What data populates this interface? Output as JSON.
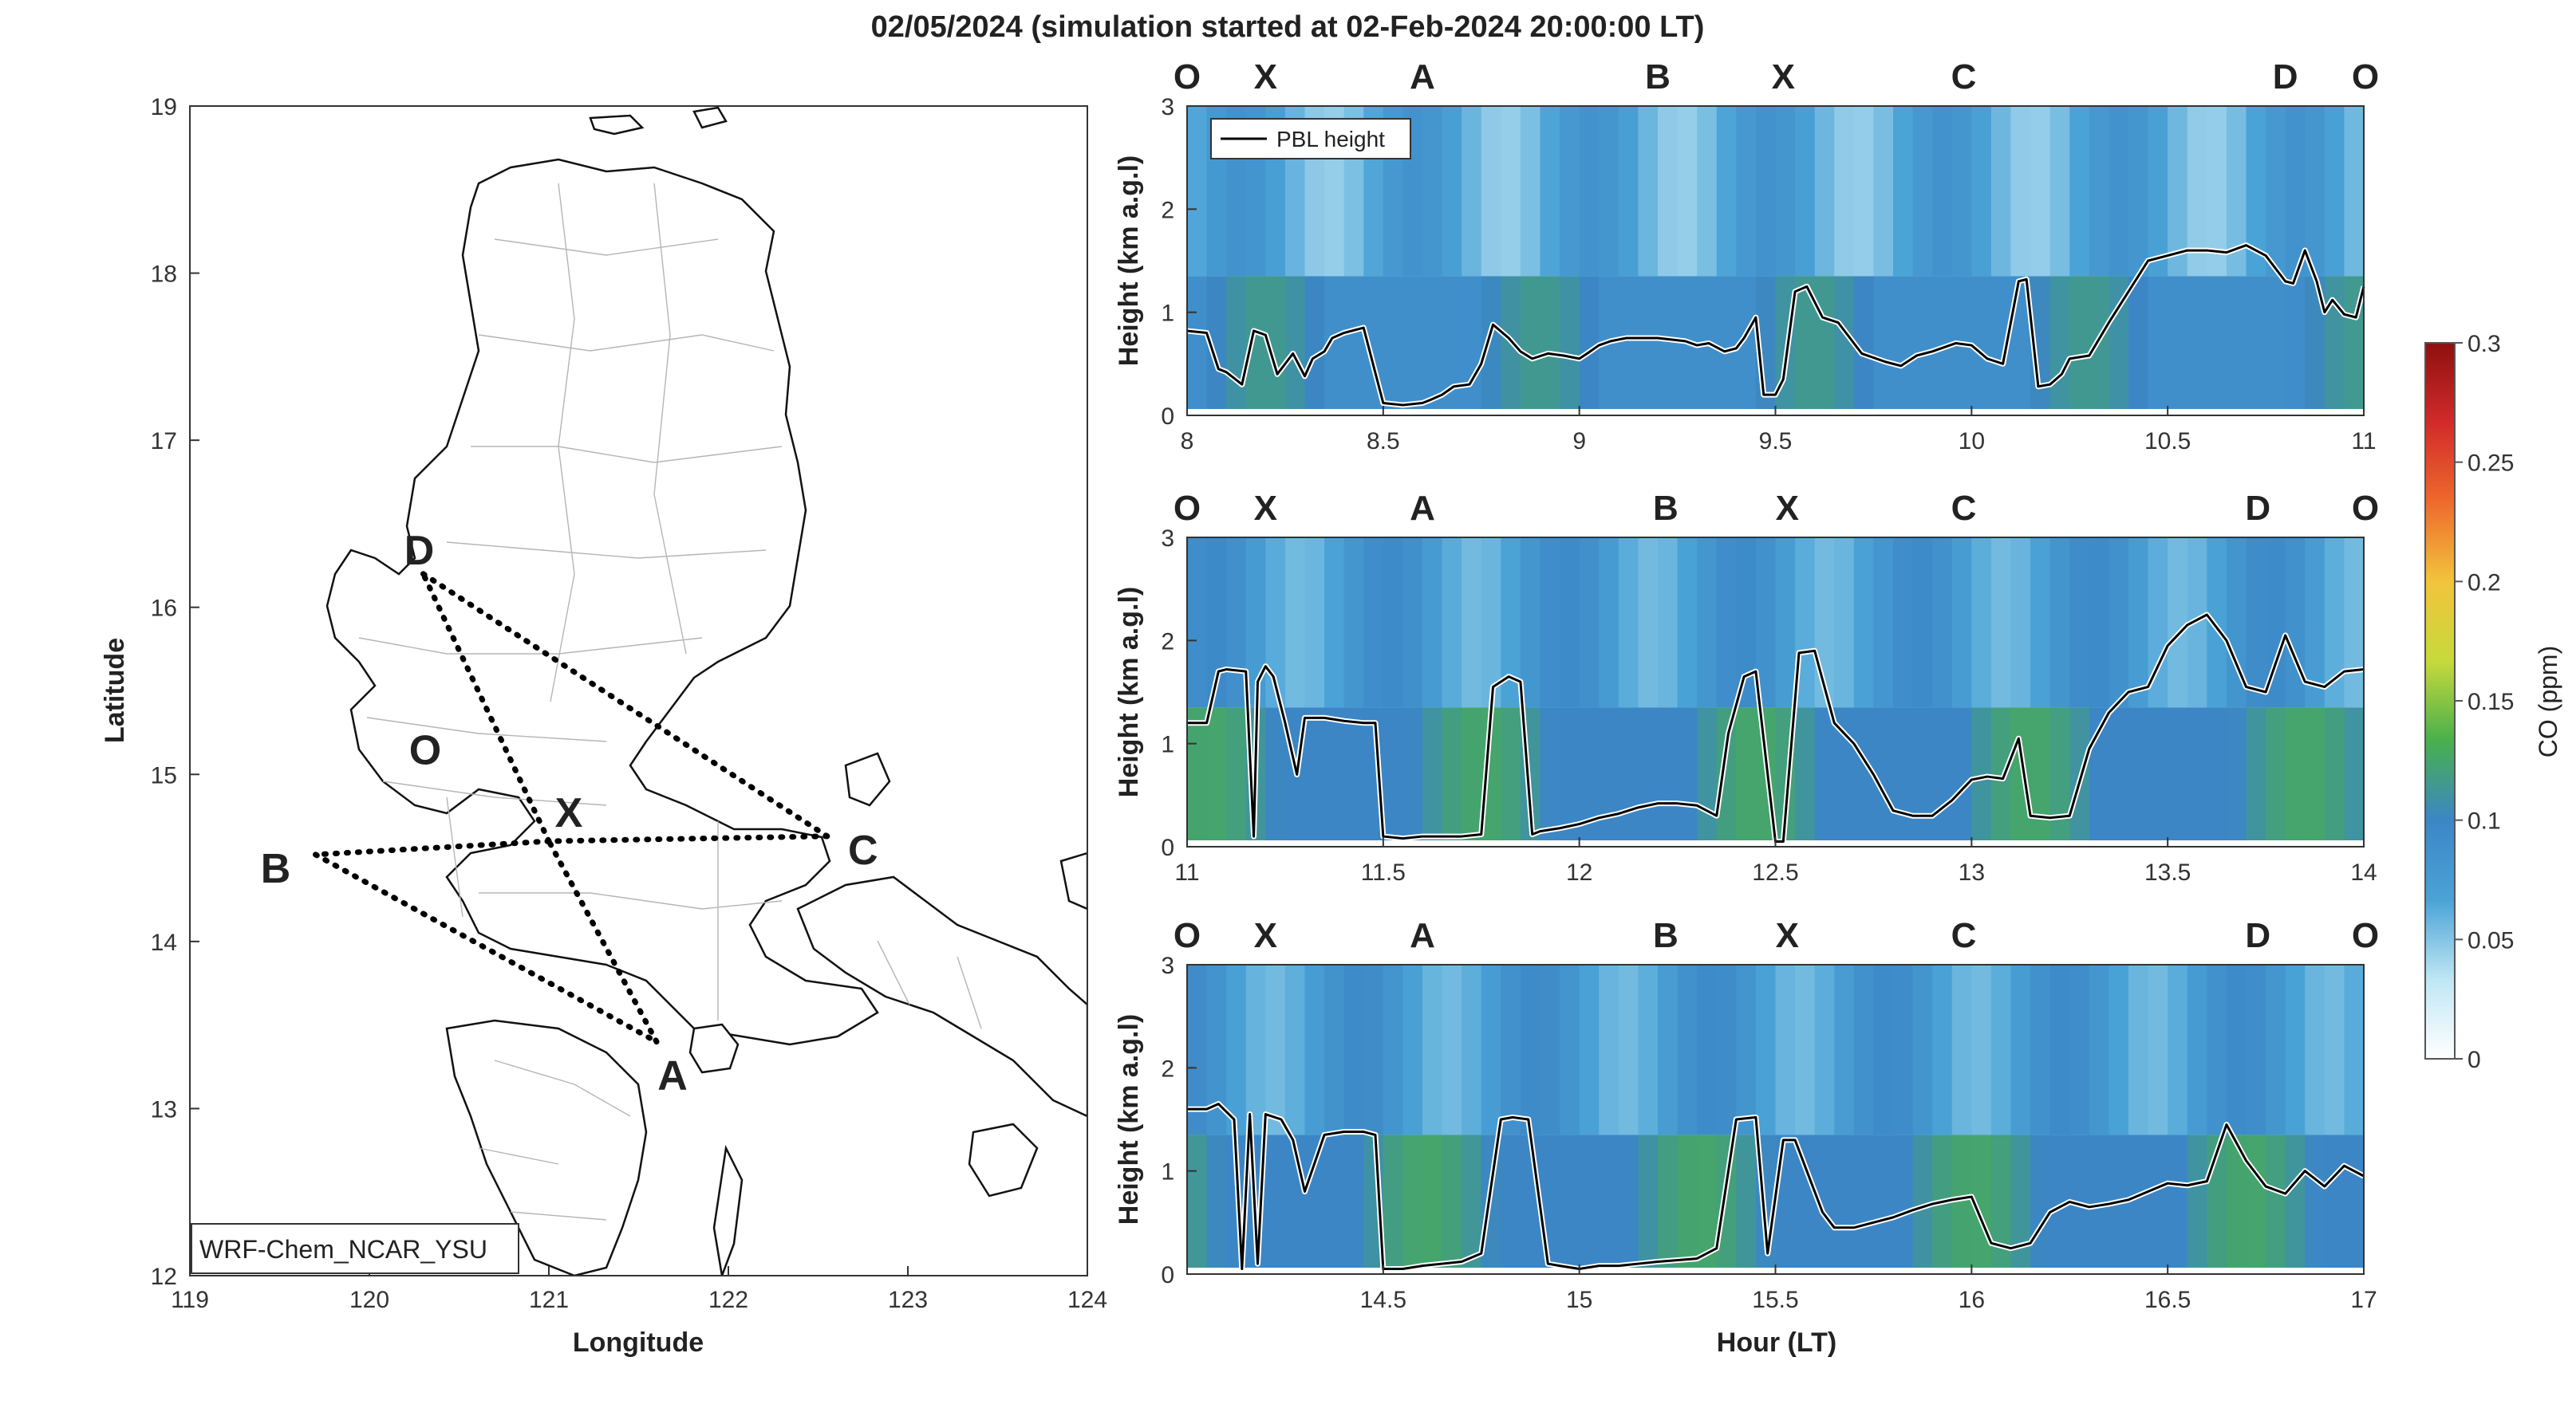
{
  "title": "02/05/2024 (simulation started at 02-Feb-2024 20:00:00 LT)",
  "colors": {
    "O": "#000000",
    "X": "#a01c3c",
    "A": "#f0a92a",
    "B": "#6aaa2c",
    "C": "#45b6e6",
    "D": "#7b3294"
  },
  "chart_data": [
    {
      "type": "map",
      "xlabel": "Longitude",
      "ylabel": "Latitude",
      "xlim": [
        119,
        124
      ],
      "ylim": [
        12,
        19
      ],
      "xticks": [
        "119",
        "120",
        "121",
        "122",
        "123",
        "124"
      ],
      "yticks": [
        "12",
        "13",
        "14",
        "15",
        "16",
        "17",
        "18",
        "19"
      ],
      "model_label": "WRF-Chem_NCAR_YSU",
      "stations": [
        {
          "name": "O",
          "lon": 120.2,
          "lat": 15.18
        },
        {
          "name": "X",
          "lon": 121.0,
          "lat": 14.6
        },
        {
          "name": "A",
          "lon": 121.6,
          "lat": 13.4
        },
        {
          "name": "B",
          "lon": 119.7,
          "lat": 14.52
        },
        {
          "name": "C",
          "lon": 122.55,
          "lat": 14.63
        },
        {
          "name": "D",
          "lon": 120.3,
          "lat": 16.2
        }
      ],
      "route": [
        "D",
        "C",
        "X",
        "B",
        "A",
        "X",
        "D"
      ]
    },
    {
      "type": "heatmap",
      "ylabel": "Height (km a.g.l)",
      "xlim": [
        8,
        11
      ],
      "ylim": [
        0,
        3
      ],
      "xticks": [
        "8",
        "8.5",
        "9",
        "9.5",
        "10",
        "10.5",
        "11"
      ],
      "yticks": [
        "0",
        "1",
        "2",
        "3"
      ],
      "legend": "PBL height",
      "station_labels": [
        {
          "name": "O",
          "x": 8.0
        },
        {
          "name": "X",
          "x": 8.2
        },
        {
          "name": "A",
          "x": 8.6
        },
        {
          "name": "B",
          "x": 9.2
        },
        {
          "name": "X",
          "x": 9.52
        },
        {
          "name": "C",
          "x": 9.98
        },
        {
          "name": "D",
          "x": 10.8
        },
        {
          "name": "O",
          "x": 10.98
        }
      ],
      "pbl_x": [
        8.0,
        8.05,
        8.08,
        8.1,
        8.14,
        8.17,
        8.2,
        8.23,
        8.27,
        8.3,
        8.32,
        8.35,
        8.37,
        8.4,
        8.45,
        8.5,
        8.55,
        8.6,
        8.62,
        8.65,
        8.68,
        8.72,
        8.75,
        8.78,
        8.82,
        8.85,
        8.88,
        8.92,
        8.96,
        9.0,
        9.02,
        9.05,
        9.08,
        9.12,
        9.2,
        9.27,
        9.3,
        9.33,
        9.37,
        9.4,
        9.42,
        9.45,
        9.47,
        9.5,
        9.52,
        9.55,
        9.58,
        9.62,
        9.66,
        9.72,
        9.78,
        9.82,
        9.86,
        9.9,
        9.96,
        10.0,
        10.04,
        10.08,
        10.12,
        10.14,
        10.17,
        10.2,
        10.23,
        10.25,
        10.3,
        10.35,
        10.4,
        10.45,
        10.5,
        10.55,
        10.6,
        10.65,
        10.7,
        10.75,
        10.8,
        10.82,
        10.85,
        10.88,
        10.9,
        10.92,
        10.95,
        10.98,
        11.0
      ],
      "pbl_y": [
        0.82,
        0.8,
        0.45,
        0.42,
        0.3,
        0.82,
        0.78,
        0.4,
        0.6,
        0.38,
        0.55,
        0.62,
        0.75,
        0.8,
        0.85,
        0.12,
        0.1,
        0.12,
        0.15,
        0.2,
        0.28,
        0.3,
        0.5,
        0.88,
        0.75,
        0.62,
        0.55,
        0.6,
        0.58,
        0.55,
        0.6,
        0.68,
        0.72,
        0.75,
        0.75,
        0.72,
        0.68,
        0.7,
        0.62,
        0.65,
        0.75,
        0.95,
        0.2,
        0.2,
        0.35,
        1.2,
        1.25,
        0.95,
        0.9,
        0.6,
        0.52,
        0.48,
        0.58,
        0.62,
        0.7,
        0.68,
        0.55,
        0.5,
        1.3,
        1.32,
        0.28,
        0.3,
        0.4,
        0.55,
        0.58,
        0.9,
        1.2,
        1.5,
        1.55,
        1.6,
        1.6,
        1.58,
        1.65,
        1.55,
        1.3,
        1.28,
        1.6,
        1.3,
        1.0,
        1.12,
        0.98,
        0.95,
        1.25
      ],
      "co_ppm_typical": 0.08,
      "co_ppm_max": 0.17
    },
    {
      "type": "heatmap",
      "ylabel": "Height (km a.g.l)",
      "xlim": [
        11,
        14
      ],
      "ylim": [
        0,
        3
      ],
      "xticks": [
        "11",
        "11.5",
        "12",
        "12.5",
        "13",
        "13.5",
        "14"
      ],
      "yticks": [
        "0",
        "1",
        "2",
        "3"
      ],
      "station_labels": [
        {
          "name": "O",
          "x": 11.0
        },
        {
          "name": "X",
          "x": 11.2
        },
        {
          "name": "A",
          "x": 11.6
        },
        {
          "name": "B",
          "x": 12.22
        },
        {
          "name": "X",
          "x": 12.53
        },
        {
          "name": "C",
          "x": 12.98
        },
        {
          "name": "D",
          "x": 13.73
        },
        {
          "name": "O",
          "x": 13.98
        }
      ],
      "pbl_x": [
        11.0,
        11.05,
        11.08,
        11.1,
        11.15,
        11.17,
        11.18,
        11.2,
        11.22,
        11.25,
        11.28,
        11.3,
        11.32,
        11.35,
        11.4,
        11.45,
        11.48,
        11.5,
        11.55,
        11.6,
        11.65,
        11.7,
        11.75,
        11.78,
        11.82,
        11.85,
        11.88,
        11.9,
        11.95,
        12.0,
        12.05,
        12.1,
        12.15,
        12.2,
        12.25,
        12.3,
        12.35,
        12.38,
        12.42,
        12.45,
        12.5,
        12.52,
        12.56,
        12.6,
        12.65,
        12.7,
        12.75,
        12.8,
        12.85,
        12.9,
        12.95,
        13.0,
        13.04,
        13.08,
        13.12,
        13.15,
        13.2,
        13.25,
        13.3,
        13.35,
        13.4,
        13.45,
        13.5,
        13.55,
        13.6,
        13.65,
        13.7,
        13.75,
        13.8,
        13.85,
        13.9,
        13.95,
        14.0
      ],
      "pbl_y": [
        1.2,
        1.2,
        1.7,
        1.72,
        1.7,
        0.1,
        1.6,
        1.75,
        1.65,
        1.2,
        0.7,
        1.25,
        1.25,
        1.25,
        1.22,
        1.2,
        1.2,
        0.1,
        0.08,
        0.1,
        0.1,
        0.1,
        0.12,
        1.55,
        1.65,
        1.6,
        0.12,
        0.15,
        0.18,
        0.22,
        0.28,
        0.32,
        0.38,
        0.42,
        0.42,
        0.4,
        0.3,
        1.1,
        1.65,
        1.7,
        0.05,
        0.05,
        1.88,
        1.9,
        1.2,
        1.0,
        0.7,
        0.35,
        0.3,
        0.3,
        0.45,
        0.65,
        0.68,
        0.66,
        1.05,
        0.3,
        0.28,
        0.3,
        0.95,
        1.3,
        1.5,
        1.55,
        1.95,
        2.15,
        2.25,
        2.0,
        1.55,
        1.5,
        2.05,
        1.6,
        1.55,
        1.7,
        1.72
      ],
      "co_ppm_typical": 0.09,
      "co_ppm_max": 0.17
    },
    {
      "type": "heatmap",
      "ylabel": "Height (km a.g.l)",
      "xlabel": "Hour (LT)",
      "xlim": [
        14,
        17
      ],
      "ylim": [
        0,
        3
      ],
      "xticks": [
        "14.5",
        "15",
        "15.5",
        "16",
        "16.5",
        "17"
      ],
      "yticks": [
        "0",
        "1",
        "2",
        "3"
      ],
      "station_labels": [
        {
          "name": "O",
          "x": 14.0
        },
        {
          "name": "X",
          "x": 14.2
        },
        {
          "name": "A",
          "x": 14.6
        },
        {
          "name": "B",
          "x": 15.22
        },
        {
          "name": "X",
          "x": 15.53
        },
        {
          "name": "C",
          "x": 15.98
        },
        {
          "name": "D",
          "x": 16.73
        },
        {
          "name": "O",
          "x": 16.98
        }
      ],
      "pbl_x": [
        14.0,
        14.05,
        14.08,
        14.12,
        14.14,
        14.16,
        14.18,
        14.2,
        14.24,
        14.27,
        14.3,
        14.35,
        14.4,
        14.45,
        14.48,
        14.5,
        14.55,
        14.6,
        14.65,
        14.7,
        14.75,
        14.8,
        14.83,
        14.87,
        14.92,
        14.95,
        15.0,
        15.05,
        15.1,
        15.15,
        15.2,
        15.3,
        15.35,
        15.4,
        15.45,
        15.48,
        15.52,
        15.55,
        15.58,
        15.62,
        15.65,
        15.7,
        15.75,
        15.8,
        15.85,
        15.9,
        15.95,
        16.0,
        16.05,
        16.1,
        16.15,
        16.2,
        16.25,
        16.3,
        16.35,
        16.4,
        16.45,
        16.5,
        16.55,
        16.6,
        16.65,
        16.7,
        16.75,
        16.8,
        16.85,
        16.9,
        16.95,
        17.0
      ],
      "pbl_y": [
        1.6,
        1.6,
        1.65,
        1.5,
        0.05,
        1.55,
        0.1,
        1.55,
        1.5,
        1.3,
        0.8,
        1.35,
        1.38,
        1.38,
        1.35,
        0.05,
        0.05,
        0.08,
        0.1,
        0.12,
        0.2,
        1.5,
        1.52,
        1.5,
        0.1,
        0.08,
        0.05,
        0.08,
        0.08,
        0.1,
        0.12,
        0.15,
        0.25,
        1.5,
        1.52,
        0.2,
        1.3,
        1.3,
        1.0,
        0.6,
        0.45,
        0.45,
        0.5,
        0.55,
        0.62,
        0.68,
        0.72,
        0.75,
        0.3,
        0.25,
        0.3,
        0.6,
        0.7,
        0.65,
        0.68,
        0.72,
        0.8,
        0.88,
        0.86,
        0.9,
        1.45,
        1.1,
        0.85,
        0.78,
        1.0,
        0.85,
        1.05,
        0.95
      ],
      "co_ppm_typical": 0.09,
      "co_ppm_max": 0.17
    }
  ],
  "colorbar": {
    "label": "CO (ppm)",
    "ticks": [
      "0",
      "0.05",
      "0.1",
      "0.15",
      "0.2",
      "0.25",
      "0.3"
    ],
    "range": [
      0,
      0.3
    ],
    "stops": [
      "#ffffff",
      "#bfe6f4",
      "#4aa3d6",
      "#3c86c6",
      "#48b04c",
      "#c7d93b",
      "#f2c43c",
      "#ee6a2c",
      "#d22a2a",
      "#8e1010"
    ]
  }
}
